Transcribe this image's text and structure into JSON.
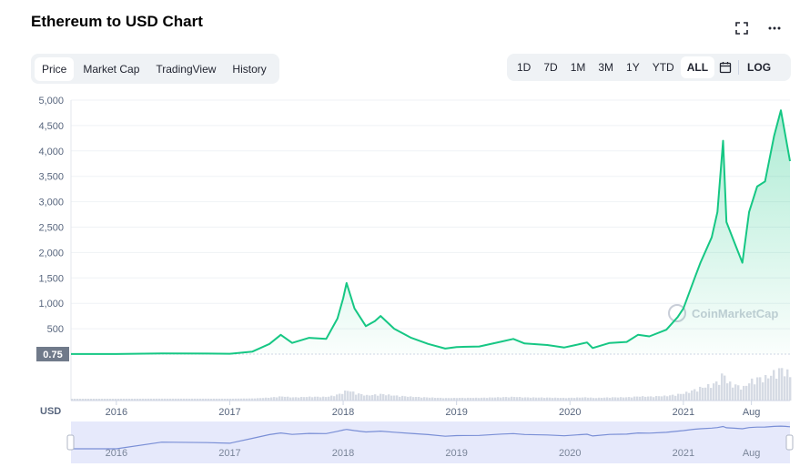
{
  "header": {
    "title": "Ethereum to USD Chart",
    "fullscreen_icon": "fullscreen-icon",
    "more_icon": "more-icon"
  },
  "tabs": [
    {
      "label": "Price",
      "active": true
    },
    {
      "label": "Market Cap",
      "active": false
    },
    {
      "label": "TradingView",
      "active": false
    },
    {
      "label": "History",
      "active": false
    }
  ],
  "ranges": [
    {
      "label": "1D",
      "active": false
    },
    {
      "label": "7D",
      "active": false
    },
    {
      "label": "1M",
      "active": false
    },
    {
      "label": "3M",
      "active": false
    },
    {
      "label": "1Y",
      "active": false
    },
    {
      "label": "YTD",
      "active": false
    },
    {
      "label": "ALL",
      "active": true
    }
  ],
  "calendar_icon": "calendar-icon",
  "log_label": "LOG",
  "currency_label": "USD",
  "watermark": "CoinMarketCap",
  "current_marker": "0.75",
  "colors": {
    "line": "#16c784",
    "volume": "#d6dbe4",
    "navigator_line": "#7a8fd6",
    "navigator_bg": "#e6e9fb",
    "marker_bg": "#707a8a"
  },
  "chart_data": {
    "type": "area",
    "title": "Ethereum to USD Chart",
    "xlabel": "",
    "ylabel": "",
    "ylim": [
      0,
      5000
    ],
    "yticks": [
      500,
      1000,
      1500,
      2000,
      2500,
      3000,
      3500,
      4000,
      4500,
      5000
    ],
    "ytick_labels": [
      "500",
      "1,000",
      "1,500",
      "2,000",
      "2,500",
      "3,000",
      "3,500",
      "4,000",
      "4,500",
      "5,000"
    ],
    "xticks": [
      {
        "t": 2016.0,
        "label": "2016"
      },
      {
        "t": 2017.0,
        "label": "2017"
      },
      {
        "t": 2018.0,
        "label": "2018"
      },
      {
        "t": 2019.0,
        "label": "2019"
      },
      {
        "t": 2020.0,
        "label": "2020"
      },
      {
        "t": 2021.0,
        "label": "2021"
      },
      {
        "t": 2021.6,
        "label": "Aug"
      }
    ],
    "grid": true,
    "series": [
      {
        "values": [
          [
            2015.6,
            1
          ],
          [
            2016.0,
            1
          ],
          [
            2016.4,
            12
          ],
          [
            2016.8,
            10
          ],
          [
            2017.0,
            8
          ],
          [
            2017.2,
            50
          ],
          [
            2017.35,
            200
          ],
          [
            2017.45,
            380
          ],
          [
            2017.55,
            220
          ],
          [
            2017.7,
            320
          ],
          [
            2017.85,
            300
          ],
          [
            2017.95,
            700
          ],
          [
            2018.0,
            1100
          ],
          [
            2018.03,
            1400
          ],
          [
            2018.1,
            900
          ],
          [
            2018.2,
            550
          ],
          [
            2018.28,
            650
          ],
          [
            2018.33,
            750
          ],
          [
            2018.45,
            500
          ],
          [
            2018.6,
            320
          ],
          [
            2018.75,
            200
          ],
          [
            2018.9,
            110
          ],
          [
            2019.0,
            140
          ],
          [
            2019.2,
            150
          ],
          [
            2019.4,
            250
          ],
          [
            2019.5,
            300
          ],
          [
            2019.6,
            210
          ],
          [
            2019.8,
            180
          ],
          [
            2019.95,
            130
          ],
          [
            2020.05,
            180
          ],
          [
            2020.15,
            230
          ],
          [
            2020.2,
            120
          ],
          [
            2020.35,
            220
          ],
          [
            2020.5,
            240
          ],
          [
            2020.6,
            380
          ],
          [
            2020.7,
            350
          ],
          [
            2020.85,
            480
          ],
          [
            2020.95,
            730
          ],
          [
            2021.0,
            900
          ],
          [
            2021.1,
            1500
          ],
          [
            2021.15,
            1800
          ],
          [
            2021.25,
            2300
          ],
          [
            2021.3,
            2800
          ],
          [
            2021.35,
            4200
          ],
          [
            2021.38,
            2600
          ],
          [
            2021.45,
            2200
          ],
          [
            2021.52,
            1800
          ],
          [
            2021.58,
            2800
          ],
          [
            2021.65,
            3300
          ],
          [
            2021.72,
            3400
          ],
          [
            2021.8,
            4300
          ],
          [
            2021.86,
            4800
          ],
          [
            2021.9,
            4300
          ],
          [
            2021.94,
            3800
          ]
        ]
      }
    ]
  }
}
